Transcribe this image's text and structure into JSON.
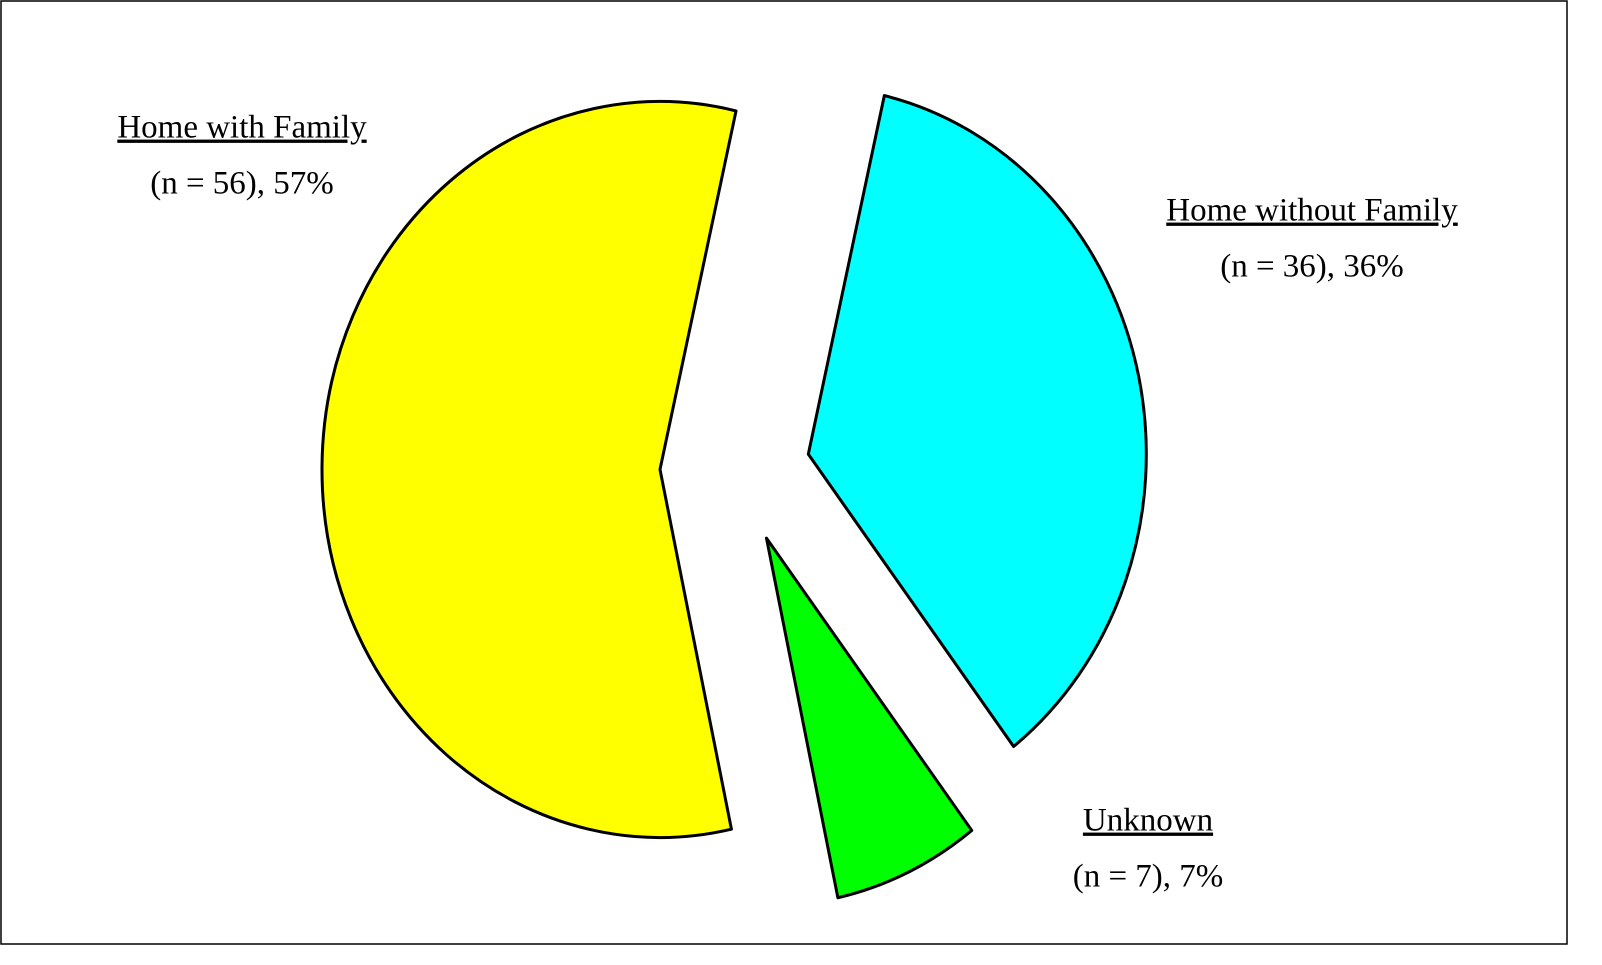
{
  "chart_data": {
    "type": "pie",
    "categories": [
      "Home with Family",
      "Home without Family",
      "Unknown"
    ],
    "values": [
      57,
      36,
      7
    ],
    "value_labels": [
      "(n = 56),  57%",
      "(n = 36), 36%",
      "(n = 7),  7%"
    ],
    "colors": [
      "#ffff00",
      "#00ffff",
      "#00ff00"
    ]
  }
}
